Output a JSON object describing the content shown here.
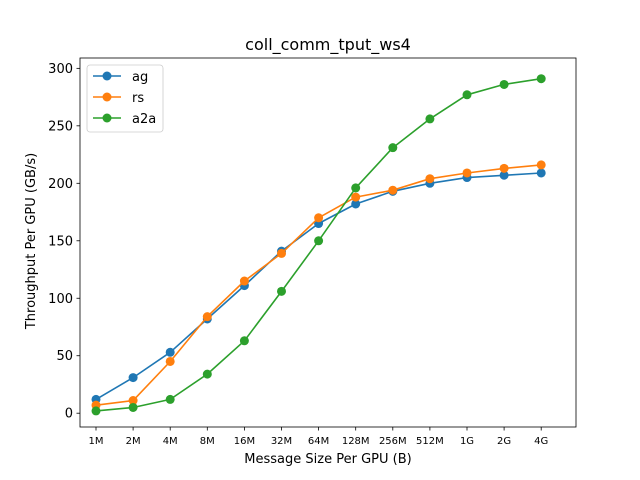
{
  "chart_data": {
    "type": "line",
    "title": "coll_comm_tput_ws4",
    "xlabel": "Message Size Per GPU (B)",
    "ylabel": "Throughput Per GPU (GB/s)",
    "categories": [
      "1M",
      "2M",
      "4M",
      "8M",
      "16M",
      "32M",
      "64M",
      "128M",
      "256M",
      "512M",
      "1G",
      "2G",
      "4G"
    ],
    "yticks": [
      0,
      50,
      100,
      150,
      200,
      250,
      300
    ],
    "ylim": [
      -12,
      309
    ],
    "grid": false,
    "legend_position": "top-left",
    "series": [
      {
        "name": "ag",
        "color": "#1f77b4",
        "values": [
          12,
          31,
          53,
          82,
          111,
          141,
          165,
          182,
          193,
          200,
          205,
          207,
          209
        ]
      },
      {
        "name": "rs",
        "color": "#ff7f0e",
        "values": [
          7,
          11,
          45,
          84,
          115,
          139,
          170,
          188,
          194,
          204,
          209,
          213,
          216
        ]
      },
      {
        "name": "a2a",
        "color": "#2ca02c",
        "values": [
          2,
          5,
          12,
          34,
          63,
          106,
          150,
          196,
          231,
          256,
          277,
          286,
          291
        ]
      }
    ]
  }
}
